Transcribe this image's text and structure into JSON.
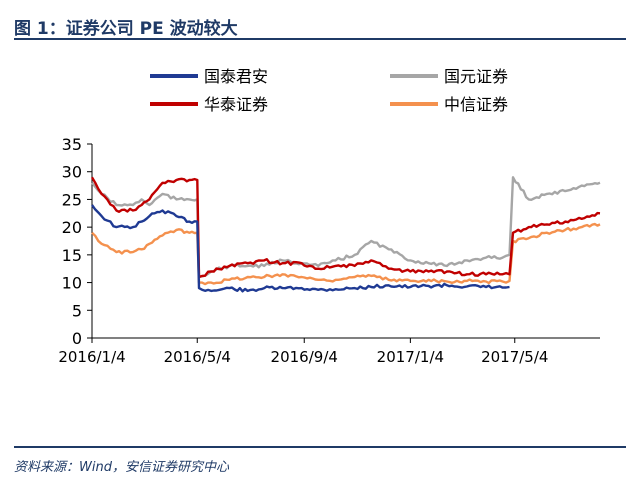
{
  "page": {
    "title": "图 1：证券公司 PE 波动较大",
    "source": "资料来源：Wind，安信证券研究中心"
  },
  "chart_data": {
    "type": "line",
    "title": "图 1：证券公司 PE 波动较大",
    "xlabel": "",
    "ylabel": "",
    "ylim": [
      0,
      35
    ],
    "yticks": [
      0,
      5,
      10,
      15,
      20,
      25,
      30,
      35
    ],
    "xlim": [
      "2016/1/4",
      "2017/8/10"
    ],
    "xtick_labels": [
      "2016/1/4",
      "2016/5/4",
      "2016/9/4",
      "2017/1/4",
      "2017/5/4"
    ],
    "legend_position": "top",
    "x": [
      "2016/1/4",
      "2016/1/15",
      "2016/2/1",
      "2016/2/20",
      "2016/3/1",
      "2016/3/10",
      "2016/3/25",
      "2016/4/10",
      "2016/4/25",
      "2016/5/4",
      "2016/5/6",
      "2016/5/20",
      "2016/6/10",
      "2016/7/1",
      "2016/7/20",
      "2016/8/10",
      "2016/9/1",
      "2016/9/20",
      "2016/10/10",
      "2016/11/1",
      "2016/11/20",
      "2016/12/10",
      "2017/1/4",
      "2017/1/25",
      "2017/2/15",
      "2017/3/10",
      "2017/4/1",
      "2017/4/20",
      "2017/4/28",
      "2017/5/2",
      "2017/5/20",
      "2017/6/10",
      "2017/7/1",
      "2017/7/20",
      "2017/8/10"
    ],
    "series": [
      {
        "name": "国泰君安",
        "color": "#1f3a93",
        "values": [
          24,
          22,
          20,
          20,
          21,
          22,
          23,
          22,
          21,
          21,
          9,
          8.5,
          9,
          8.5,
          9,
          9,
          9,
          8.7,
          8.8,
          9,
          9.2,
          9.5,
          9.2,
          9.4,
          9.5,
          9.3,
          9.2,
          9.1,
          9.2,
          null,
          null,
          null,
          null,
          null,
          null
        ]
      },
      {
        "name": "国元证券",
        "color": "#a6a6a6",
        "values": [
          28,
          26,
          24,
          24,
          25,
          24,
          26,
          25,
          25,
          25,
          11,
          12,
          13,
          13,
          13,
          14,
          13.5,
          13,
          14,
          15,
          17.5,
          16,
          14,
          13.5,
          13,
          14,
          14.5,
          14.5,
          15,
          29,
          25,
          26,
          26.5,
          27.5,
          28
        ]
      },
      {
        "name": "华泰证券",
        "color": "#c00000",
        "values": [
          29,
          26,
          23,
          23,
          24,
          25,
          28,
          28.5,
          28.5,
          28.5,
          11,
          12,
          13,
          13.5,
          14,
          13.5,
          13.5,
          12.5,
          13,
          13,
          14,
          12.5,
          12,
          12,
          12,
          11.5,
          11.5,
          11.5,
          11.5,
          19,
          20,
          20.5,
          21,
          21.5,
          22.5
        ]
      },
      {
        "name": "中信证券",
        "color": "#f4914e",
        "values": [
          19,
          17,
          15.5,
          15.5,
          16,
          17,
          18.5,
          19.5,
          19,
          19,
          10,
          10,
          10.5,
          11,
          11,
          11.5,
          11,
          10.5,
          10.5,
          11,
          11.2,
          10.5,
          10.3,
          10.5,
          10.2,
          10.3,
          10.2,
          10.2,
          10.3,
          17.5,
          18,
          19,
          19.5,
          20,
          20.5
        ]
      }
    ]
  }
}
